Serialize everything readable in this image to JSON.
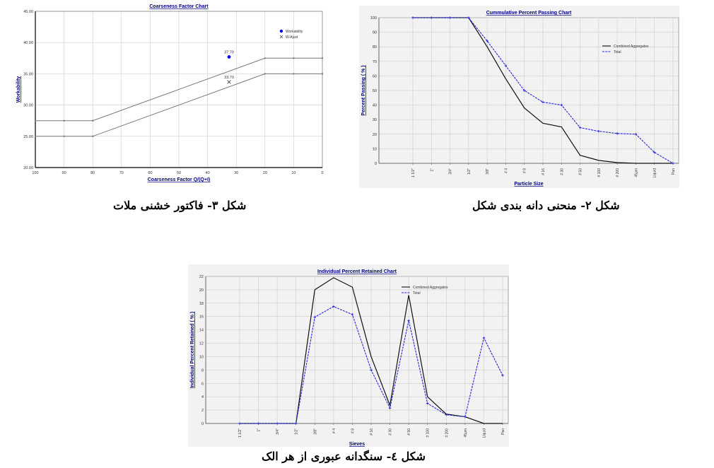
{
  "captions": {
    "coarseness": "شکل ۳- فاکتور خشنی ملات",
    "passing": "شکل ۲- منحنی دانه بندی شکل",
    "retained": "شکل ٤- سنگدانه عبوری از هر الک"
  },
  "chart_data": [
    {
      "type": "line",
      "title": "Coarseness Factor Chart",
      "xlabel": "Coarseness Factor Q/(Q+I)",
      "ylabel": "Workability",
      "xlim": [
        100,
        0
      ],
      "ylim": [
        20,
        45
      ],
      "x_ticks": [
        "100",
        "90",
        "80",
        "70",
        "60",
        "50",
        "40",
        "30",
        "20",
        "10",
        "0"
      ],
      "y_ticks": [
        "20.00",
        "25.00",
        "30.00",
        "35.00",
        "40.00",
        "45.00"
      ],
      "grid": true,
      "legend": "top-right",
      "boundary_lines": [
        {
          "x": [
            100,
            90,
            80,
            20,
            10,
            0
          ],
          "y": [
            27.5,
            27.5,
            27.5,
            37.5,
            37.5,
            37.5
          ]
        },
        {
          "x": [
            100,
            90,
            80,
            20,
            10,
            0
          ],
          "y": [
            25,
            25,
            25,
            35,
            35,
            35
          ]
        }
      ],
      "points": [
        {
          "name": "Workability",
          "x": 32.5,
          "y": 37.7,
          "label": "37.70",
          "marker": "dot"
        },
        {
          "name": "W-Ajust",
          "x": 32.5,
          "y": 33.7,
          "label": "33.70",
          "marker": "cross"
        }
      ]
    },
    {
      "type": "line",
      "title": "Cummulative Percent Passing Chart",
      "xlabel": "Particle Size",
      "ylabel": "Percent Passing ( % )",
      "ylim": [
        0,
        100
      ],
      "y_ticks": [
        "0",
        "10",
        "20",
        "30",
        "40",
        "50",
        "60",
        "70",
        "80",
        "90",
        "100"
      ],
      "categories": [
        "1 1/2\"",
        "1\"",
        "3/4\"",
        "1/2\"",
        "3/8\"",
        "# 4",
        "# 8",
        "# 16",
        "# 30",
        "# 50",
        "# 100",
        "# 200",
        "45μm",
        "Liquid",
        "Pan"
      ],
      "grid": true,
      "legend": "top-right",
      "series": [
        {
          "name": "Combined Aggregates",
          "color": "#111111",
          "values": [
            100,
            100,
            100,
            100,
            80,
            58,
            38,
            27.5,
            25,
            5.5,
            2,
            0.5,
            0,
            0,
            0
          ]
        },
        {
          "name": "Total",
          "color": "#2a2ae0",
          "values": [
            100,
            100,
            100,
            100,
            84,
            67,
            50,
            42,
            40,
            24.5,
            22,
            20.5,
            20,
            7.5,
            0
          ]
        }
      ]
    },
    {
      "type": "line",
      "title": "Individual Percent Retained Chart",
      "xlabel": "Sieves",
      "ylabel": "Individual Percent Retained ( % )",
      "ylim": [
        0,
        22
      ],
      "y_ticks": [
        "0",
        "2",
        "4",
        "6",
        "8",
        "10",
        "12",
        "14",
        "16",
        "18",
        "20",
        "22"
      ],
      "categories": [
        "1 1/2\"",
        "1\"",
        "3/4\"",
        "1/2\"",
        "3/8\"",
        "# 4",
        "# 8",
        "# 16",
        "# 30",
        "# 50",
        "# 100",
        "# 200",
        "45μm",
        "Liquid",
        "Pan"
      ],
      "grid": true,
      "legend": "top-right",
      "series": [
        {
          "name": "Combined Aggregates",
          "color": "#111111",
          "values": [
            0,
            0,
            0,
            0,
            20,
            21.8,
            20.4,
            10,
            2.7,
            19.2,
            4,
            1.4,
            1,
            0,
            0
          ]
        },
        {
          "name": "Total",
          "color": "#2a2ae0",
          "values": [
            0,
            0,
            0,
            0,
            15.9,
            17.5,
            16.3,
            8,
            2.3,
            15.4,
            3,
            1.3,
            1,
            12.8,
            7.2
          ]
        }
      ]
    }
  ]
}
